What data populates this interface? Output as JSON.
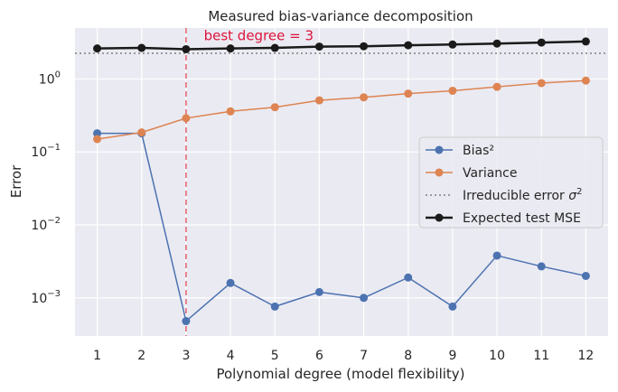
{
  "chart_data": {
    "type": "line",
    "title": "Measured bias-variance decomposition",
    "xlabel": "Polynomial degree (model flexibility)",
    "ylabel": "Error",
    "yscale": "log",
    "x": [
      1,
      2,
      3,
      4,
      5,
      6,
      7,
      8,
      9,
      10,
      11,
      12
    ],
    "xlim": [
      0.5,
      12.5
    ],
    "ylim": [
      0.0003,
      5.0
    ],
    "x_tick_labels": [
      "1",
      "2",
      "3",
      "4",
      "5",
      "6",
      "7",
      "8",
      "9",
      "10",
      "11",
      "12"
    ],
    "y_ticks": [
      {
        "value": 0.001,
        "base": "10",
        "exp": "−3"
      },
      {
        "value": 0.01,
        "base": "10",
        "exp": "−2"
      },
      {
        "value": 0.1,
        "base": "10",
        "exp": "−1"
      },
      {
        "value": 1,
        "base": "10",
        "exp": "0"
      }
    ],
    "grid": true,
    "legend_position": "center-right",
    "series": [
      {
        "name": "Bias²",
        "color": "#4c72b0",
        "line_width": 1.5,
        "marker": true,
        "values": [
          0.18,
          0.18,
          0.00048,
          0.0016,
          0.00076,
          0.0012,
          0.001,
          0.0019,
          0.00076,
          0.0038,
          0.0027,
          0.002
        ]
      },
      {
        "name": "Variance",
        "color": "#dd8452",
        "line_width": 1.5,
        "marker": true,
        "values": [
          0.15,
          0.185,
          0.29,
          0.36,
          0.41,
          0.51,
          0.56,
          0.63,
          0.69,
          0.78,
          0.88,
          0.95
        ]
      },
      {
        "name": "Expected test MSE",
        "color": "#1a1a1a",
        "line_width": 2.5,
        "marker": true,
        "values": [
          2.62,
          2.67,
          2.56,
          2.62,
          2.67,
          2.78,
          2.81,
          2.9,
          2.97,
          3.06,
          3.16,
          3.27
        ]
      }
    ],
    "reference_lines": {
      "irreducible_error": {
        "name": "Irreducible error",
        "sigma_symbol": "σ",
        "sigma_exp": "2",
        "value": 2.25,
        "color": "#7f7f7f"
      },
      "best_degree": {
        "value": 3,
        "color": "#e8606a"
      }
    },
    "annotation": {
      "text": "best degree = 3",
      "x": 3.4,
      "y": 3.4,
      "color": "#dc143c"
    },
    "legend_order": [
      "Bias²",
      "Variance",
      "irreducible_error",
      "Expected test MSE"
    ]
  }
}
